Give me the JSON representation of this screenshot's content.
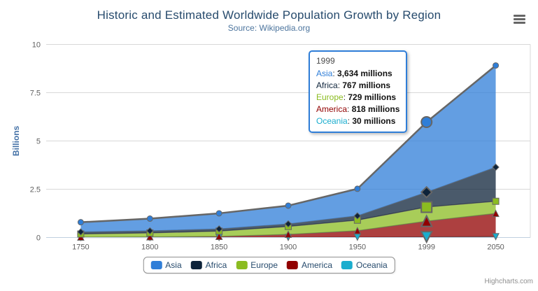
{
  "credits": {
    "label": "Highcharts.com"
  },
  "ui_colors": {
    "title": "#274b6d",
    "subtitle": "#4d759e",
    "axis_label": "#606060",
    "yaxis_title": "#4572a7",
    "legend_text": "#274b6d",
    "grid_line": "#d8d8d8",
    "axis_line": "#c0d0e0",
    "series_outline": "#666666",
    "tooltip_border": "#2f7ed8"
  },
  "chart_data": {
    "type": "area",
    "stacking": "normal",
    "title": "Historic and Estimated Worldwide Population Growth by Region",
    "subtitle": "Source: Wikipedia.org",
    "categories": [
      "1750",
      "1800",
      "1850",
      "1900",
      "1950",
      "1999",
      "2050"
    ],
    "xlabel": "",
    "ylabel": "Billions",
    "ylim": [
      0,
      10
    ],
    "yticks": [
      0,
      2.5,
      5,
      7.5,
      10
    ],
    "ytick_labels": [
      "0",
      "2.5",
      "5",
      "7.5",
      "10"
    ],
    "values_unit": "millions",
    "grid": true,
    "legend_position": "bottom",
    "series": [
      {
        "name": "Asia",
        "color": "#2f7ed8",
        "marker": "circle",
        "values": [
          502,
          635,
          809,
          947,
          1402,
          3634,
          5268
        ]
      },
      {
        "name": "Africa",
        "color": "#0d233a",
        "marker": "diamond",
        "values": [
          106,
          107,
          111,
          133,
          221,
          767,
          1766
        ]
      },
      {
        "name": "Europe",
        "color": "#8bbc21",
        "marker": "square",
        "values": [
          163,
          203,
          276,
          408,
          547,
          729,
          628
        ]
      },
      {
        "name": "America",
        "color": "#910000",
        "marker": "triangle-up",
        "values": [
          18,
          31,
          54,
          156,
          339,
          818,
          1201
        ]
      },
      {
        "name": "Oceania",
        "color": "#1aadce",
        "marker": "triangle-down",
        "values": [
          2,
          2,
          2,
          6,
          13,
          30,
          46
        ]
      }
    ],
    "tooltip": {
      "category": "1999",
      "hover_index": 5,
      "separator": ": ",
      "rows": [
        {
          "name": "Asia",
          "color": "#2f7ed8",
          "value_text": "3,634 millions"
        },
        {
          "name": "Africa",
          "color": "#0d233a",
          "value_text": "767 millions"
        },
        {
          "name": "Europe",
          "color": "#8bbc21",
          "value_text": "729 millions"
        },
        {
          "name": "America",
          "color": "#910000",
          "value_text": "818 millions"
        },
        {
          "name": "Oceania",
          "color": "#1aadce",
          "value_text": "30 millions"
        }
      ]
    }
  }
}
